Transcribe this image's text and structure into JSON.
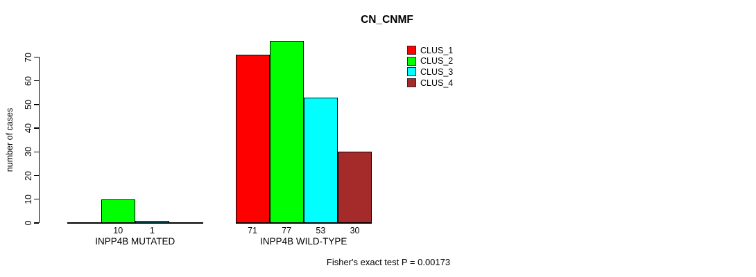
{
  "title": "CN_CNMF",
  "footer": "Fisher's exact test P = 0.00173",
  "y_axis": {
    "label": "number of cases",
    "ticks": [
      0,
      10,
      20,
      30,
      40,
      50,
      60,
      70
    ]
  },
  "legend": {
    "items": [
      {
        "label": "CLUS_1",
        "color": "#FF0000"
      },
      {
        "label": "CLUS_2",
        "color": "#00FF00"
      },
      {
        "label": "CLUS_3",
        "color": "#00FFFF"
      },
      {
        "label": "CLUS_4",
        "color": "#A52A2A"
      }
    ]
  },
  "chart_data": {
    "type": "bar",
    "title": "CN_CNMF",
    "ylabel": "number of cases",
    "xlabel": "",
    "ylim": [
      0,
      77
    ],
    "y_ticks": [
      0,
      10,
      20,
      30,
      40,
      50,
      60,
      70
    ],
    "grid": false,
    "legend_position": "top-right",
    "groups": [
      "INPP4B MUTATED",
      "INPP4B WILD-TYPE"
    ],
    "series": [
      {
        "name": "CLUS_1",
        "color": "#FF0000",
        "values": [
          0,
          71
        ]
      },
      {
        "name": "CLUS_2",
        "color": "#00FF00",
        "values": [
          10,
          77
        ]
      },
      {
        "name": "CLUS_3",
        "color": "#00FFFF",
        "values": [
          1,
          53
        ]
      },
      {
        "name": "CLUS_4",
        "color": "#A52A2A",
        "values": [
          0,
          30
        ]
      }
    ],
    "bar_value_labels": {
      "INPP4B MUTATED": [
        null,
        10,
        1,
        null
      ],
      "INPP4B WILD-TYPE": [
        71,
        77,
        53,
        30
      ]
    },
    "annotation": "Fisher's exact test P = 0.00173"
  }
}
